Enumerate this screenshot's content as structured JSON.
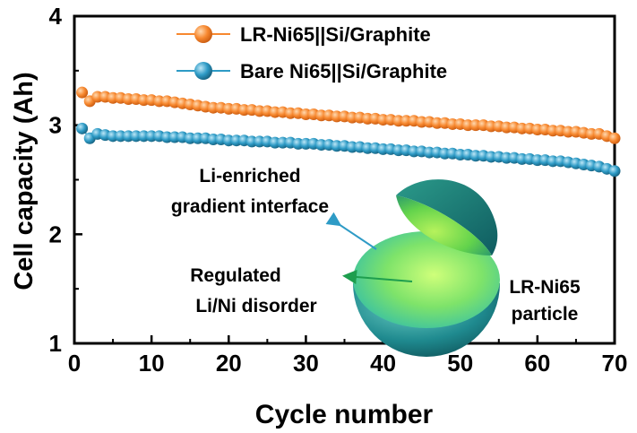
{
  "chart_data": {
    "type": "scatter",
    "xlabel": "Cycle number",
    "ylabel": "Cell capacity (Ah)",
    "xlim": [
      0,
      70
    ],
    "ylim": [
      1,
      4
    ],
    "xticks": [
      "0",
      "10",
      "20",
      "30",
      "40",
      "50",
      "60",
      "70"
    ],
    "yticks": [
      "1",
      "2",
      "3",
      "4"
    ],
    "grid": false,
    "legend_position": "top-center",
    "series": [
      {
        "name": "LR-Ni65||Si/Graphite",
        "color": "#F7882F",
        "x": [
          1,
          2,
          3,
          4,
          5,
          6,
          7,
          8,
          9,
          10,
          11,
          12,
          13,
          14,
          15,
          16,
          17,
          18,
          19,
          20,
          21,
          22,
          23,
          24,
          25,
          26,
          27,
          28,
          29,
          30,
          31,
          32,
          33,
          34,
          35,
          36,
          37,
          38,
          39,
          40,
          41,
          42,
          43,
          44,
          45,
          46,
          47,
          48,
          49,
          50,
          51,
          52,
          53,
          54,
          55,
          56,
          57,
          58,
          59,
          60,
          61,
          62,
          63,
          64,
          65,
          66,
          67,
          68,
          69,
          70
        ],
        "y": [
          3.3,
          3.22,
          3.26,
          3.26,
          3.25,
          3.25,
          3.24,
          3.24,
          3.23,
          3.23,
          3.22,
          3.22,
          3.21,
          3.2,
          3.19,
          3.18,
          3.17,
          3.16,
          3.16,
          3.15,
          3.15,
          3.14,
          3.14,
          3.13,
          3.13,
          3.12,
          3.12,
          3.11,
          3.11,
          3.1,
          3.1,
          3.09,
          3.09,
          3.08,
          3.08,
          3.07,
          3.07,
          3.06,
          3.06,
          3.05,
          3.05,
          3.04,
          3.04,
          3.04,
          3.03,
          3.03,
          3.02,
          3.02,
          3.01,
          3.01,
          3.0,
          3.0,
          3.0,
          2.99,
          2.99,
          2.98,
          2.98,
          2.97,
          2.97,
          2.96,
          2.96,
          2.95,
          2.95,
          2.94,
          2.94,
          2.93,
          2.92,
          2.92,
          2.9,
          2.88
        ]
      },
      {
        "name": "Bare Ni65||Si/Graphite",
        "color": "#2E9BC6",
        "x": [
          1,
          2,
          3,
          4,
          5,
          6,
          7,
          8,
          9,
          10,
          11,
          12,
          13,
          14,
          15,
          16,
          17,
          18,
          19,
          20,
          21,
          22,
          23,
          24,
          25,
          26,
          27,
          28,
          29,
          30,
          31,
          32,
          33,
          34,
          35,
          36,
          37,
          38,
          39,
          40,
          41,
          42,
          43,
          44,
          45,
          46,
          47,
          48,
          49,
          50,
          51,
          52,
          53,
          54,
          55,
          56,
          57,
          58,
          59,
          60,
          61,
          62,
          63,
          64,
          65,
          66,
          67,
          68,
          69,
          70
        ],
        "y": [
          2.97,
          2.88,
          2.92,
          2.91,
          2.9,
          2.9,
          2.9,
          2.9,
          2.9,
          2.9,
          2.9,
          2.89,
          2.89,
          2.89,
          2.88,
          2.88,
          2.88,
          2.87,
          2.87,
          2.86,
          2.86,
          2.86,
          2.85,
          2.85,
          2.85,
          2.84,
          2.84,
          2.84,
          2.83,
          2.83,
          2.83,
          2.82,
          2.82,
          2.81,
          2.81,
          2.8,
          2.8,
          2.79,
          2.79,
          2.78,
          2.78,
          2.77,
          2.77,
          2.76,
          2.76,
          2.75,
          2.75,
          2.74,
          2.74,
          2.73,
          2.73,
          2.72,
          2.72,
          2.71,
          2.71,
          2.7,
          2.7,
          2.69,
          2.69,
          2.68,
          2.68,
          2.67,
          2.67,
          2.66,
          2.65,
          2.64,
          2.63,
          2.62,
          2.6,
          2.58
        ]
      }
    ],
    "annotations": [
      {
        "name": "li-enriched",
        "lines": [
          "Li-enriched",
          "gradient interface"
        ]
      },
      {
        "name": "regulated",
        "lines": [
          "Regulated",
          "Li/Ni disorder"
        ]
      },
      {
        "name": "particle",
        "lines": [
          "LR-Ni65",
          "particle"
        ]
      }
    ]
  },
  "colors": {
    "arrow_blue": "#2E9BC6",
    "arrow_green": "#1E9E4E",
    "sphere_outer": "#1F8A8F",
    "sphere_inner": "#7EE36A"
  }
}
